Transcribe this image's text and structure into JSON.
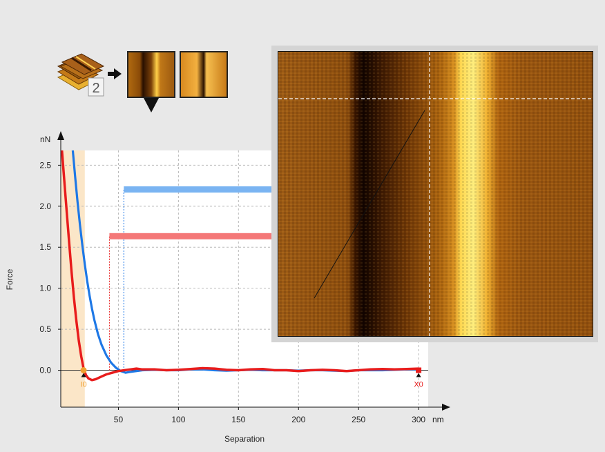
{
  "icons": {
    "stack_icon": "layer-stack-icon",
    "badge_number": "2",
    "arrow_icon": "arrow-right-icon",
    "thumbnails": [
      "afm-height-thumbnail",
      "afm-lateral-thumbnail"
    ],
    "selector_icon": "triangle-down-icon"
  },
  "colors": {
    "approach": "#1e78e6",
    "retract": "#e81c1c",
    "approach_bar": "#7ab4f2",
    "retract_bar": "#f47878",
    "highlight_band": "#fbe6c8",
    "marker_I0": "#f0a030",
    "marker_X0": "#e81c1c"
  },
  "chart_data": {
    "type": "line",
    "xlabel": "Separation",
    "ylabel": "Force",
    "x_unit": "nm",
    "y_unit": "nN",
    "xlim": [
      2,
      308
    ],
    "ylim": [
      -0.45,
      2.68
    ],
    "x_ticks": [
      50,
      100,
      150,
      200,
      250,
      300
    ],
    "y_ticks": [
      0.0,
      0.5,
      1.0,
      1.5,
      2.0,
      2.5
    ],
    "x_tick_labels": [
      "50",
      "100",
      "150",
      "200",
      "250",
      "300"
    ],
    "y_tick_labels": [
      "0.0",
      "0.5",
      "1.0",
      "1.5",
      "2.0",
      "2.5"
    ],
    "grid": true,
    "highlight_band": [
      2,
      22
    ],
    "series": [
      {
        "role": "approach",
        "x": [
          12,
          14,
          16,
          18,
          20,
          22,
          24,
          26,
          28,
          30,
          33,
          36,
          40,
          44,
          48,
          52,
          56,
          60,
          70,
          80,
          90,
          100,
          110,
          120,
          130,
          140,
          150,
          160,
          170,
          180,
          190,
          200,
          210,
          220,
          230,
          240,
          250,
          260,
          270,
          280,
          290,
          300
        ],
        "y": [
          2.68,
          2.35,
          2.05,
          1.77,
          1.52,
          1.29,
          1.09,
          0.91,
          0.75,
          0.61,
          0.44,
          0.31,
          0.18,
          0.09,
          0.03,
          -0.01,
          -0.03,
          -0.02,
          0.0,
          0.005,
          0.0,
          0.0,
          0.01,
          0.01,
          0.0,
          -0.005,
          0.0,
          0.005,
          0.0,
          0.0,
          0.0,
          -0.005,
          0.0,
          0.0,
          -0.005,
          -0.01,
          0.0,
          0.0,
          0.0,
          0.005,
          0.01,
          0.01
        ]
      },
      {
        "role": "retract",
        "x": [
          3,
          5,
          7,
          9,
          11,
          13,
          15,
          17,
          19,
          21,
          23,
          25,
          28,
          31,
          34,
          37,
          40,
          45,
          50,
          55,
          60,
          65,
          70,
          80,
          90,
          100,
          110,
          120,
          130,
          140,
          150,
          160,
          170,
          180,
          190,
          200,
          210,
          220,
          230,
          240,
          250,
          260,
          270,
          280,
          290,
          300
        ],
        "y": [
          2.68,
          2.3,
          1.92,
          1.55,
          1.2,
          0.88,
          0.6,
          0.36,
          0.17,
          0.02,
          -0.06,
          -0.1,
          -0.12,
          -0.11,
          -0.09,
          -0.07,
          -0.05,
          -0.03,
          -0.01,
          0.0,
          0.01,
          0.02,
          0.01,
          0.01,
          0.0,
          0.005,
          0.015,
          0.025,
          0.02,
          0.005,
          0.0,
          0.01,
          0.015,
          0.0,
          0.0,
          -0.01,
          0.0,
          0.005,
          0.0,
          -0.01,
          0.0,
          0.01,
          0.015,
          0.01,
          0.015,
          0.02
        ]
      }
    ],
    "levels": [
      {
        "role": "approach",
        "x_start": 54.5,
        "y": 2.2
      },
      {
        "role": "retract",
        "x_start": 42.5,
        "y": 1.63
      }
    ],
    "markers": [
      {
        "label": "I0",
        "x": 21,
        "y": 0.0,
        "role": "I0"
      },
      {
        "label": "X0",
        "x": 300,
        "y": 0.0,
        "role": "X0"
      }
    ]
  }
}
